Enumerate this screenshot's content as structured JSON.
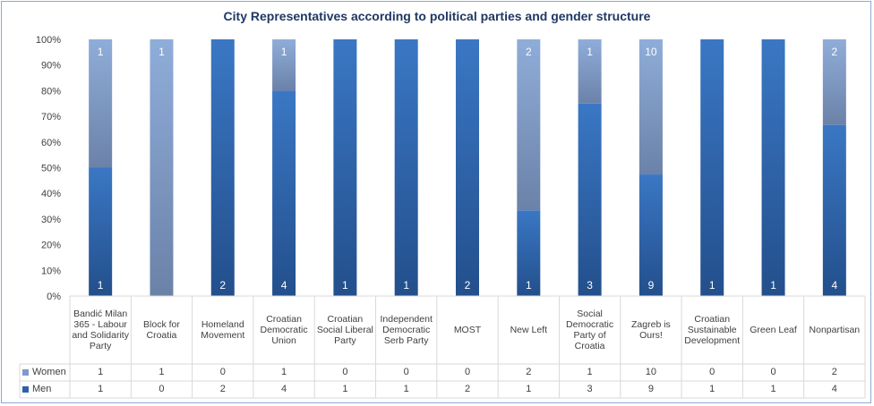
{
  "chart_data": {
    "type": "bar",
    "stacked": true,
    "percent": true,
    "title": "City Representatives  according to political parties and gender structure",
    "categories": [
      "Bandić Milan 365 - Labour and Solidarity Party",
      "Block for Croatia",
      "Homeland Movement",
      "Croatian Democratic Union",
      "Croatian Social Liberal Party",
      "Independent Democratic Serb Party",
      "MOST",
      "New Left",
      "Social Democratic Party of Croatia",
      "Zagreb is Ours!",
      "Croatian Sustainable Development",
      "Green Leaf",
      "Nonpartisan"
    ],
    "series": [
      {
        "name": "Women",
        "values": [
          1,
          1,
          0,
          1,
          0,
          0,
          0,
          2,
          1,
          10,
          0,
          0,
          2
        ],
        "color": "#7f9acb"
      },
      {
        "name": "Men",
        "values": [
          1,
          0,
          2,
          4,
          1,
          1,
          2,
          1,
          3,
          9,
          1,
          1,
          4
        ],
        "color": "#2e62a8"
      }
    ],
    "yticks": [
      "0%",
      "10%",
      "20%",
      "30%",
      "40%",
      "50%",
      "60%",
      "70%",
      "80%",
      "90%",
      "100%"
    ],
    "ylim": [
      0,
      100
    ],
    "grid": false,
    "legend": "data-table"
  }
}
